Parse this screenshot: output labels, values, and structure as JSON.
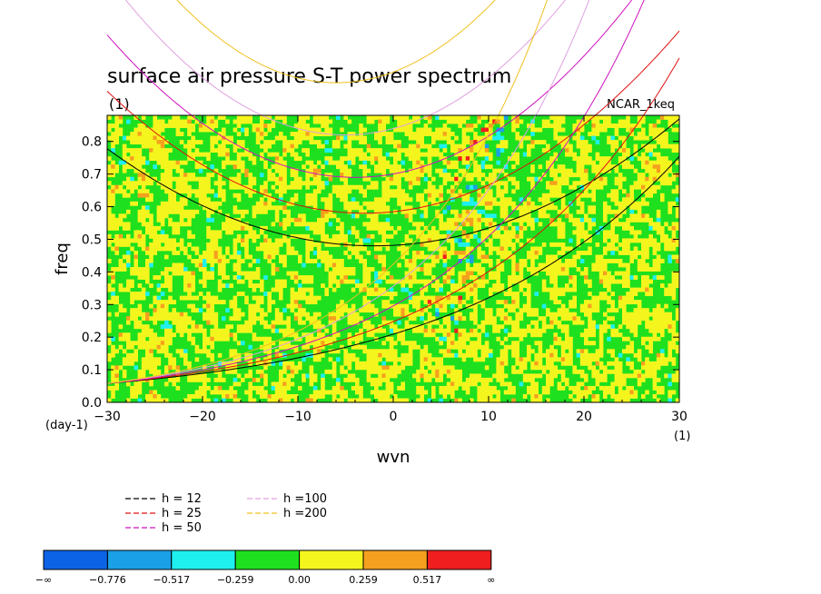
{
  "chart_data": {
    "type": "heatmap",
    "title": "surface air pressure S-T power spectrum",
    "subtitle": "(1)",
    "annotation": "NCAR_1keq",
    "xlabel": "wvn",
    "ylabel": "freq",
    "x_unit": "(1)",
    "y_unit": "(day-1)",
    "xlim": [
      -30,
      30
    ],
    "ylim": [
      0,
      0.88
    ],
    "xticks": [
      -30,
      -20,
      -10,
      0,
      10,
      20,
      30
    ],
    "yticks": [
      0.0,
      0.1,
      0.2,
      0.3,
      0.4,
      0.5,
      0.6,
      0.7,
      0.8
    ],
    "xtick_labels": [
      "−30",
      "−20",
      "−10",
      "0",
      "10",
      "20",
      "30"
    ],
    "ytick_labels": [
      "0.0",
      "0.1",
      "0.2",
      "0.3",
      "0.4",
      "0.5",
      "0.6",
      "0.7",
      "0.8"
    ],
    "colorbar": {
      "colors": [
        "#0d63e6",
        "#1aa0e6",
        "#1ef0f0",
        "#1ee01e",
        "#f5f51e",
        "#f5a01e",
        "#f01e1e"
      ],
      "labels": [
        "−∞",
        "−0.776",
        "−0.517",
        "−0.259",
        "0.00",
        "0.259",
        "0.517",
        "∞"
      ]
    },
    "series": [
      {
        "name": "h = 12",
        "color": "#000000"
      },
      {
        "name": "h = 25",
        "color": "#e01010"
      },
      {
        "name": "h = 50",
        "color": "#d010c0"
      },
      {
        "name": "h =100",
        "color": "#e0a0e0"
      },
      {
        "name": "h =200",
        "color": "#f0c020"
      }
    ]
  }
}
